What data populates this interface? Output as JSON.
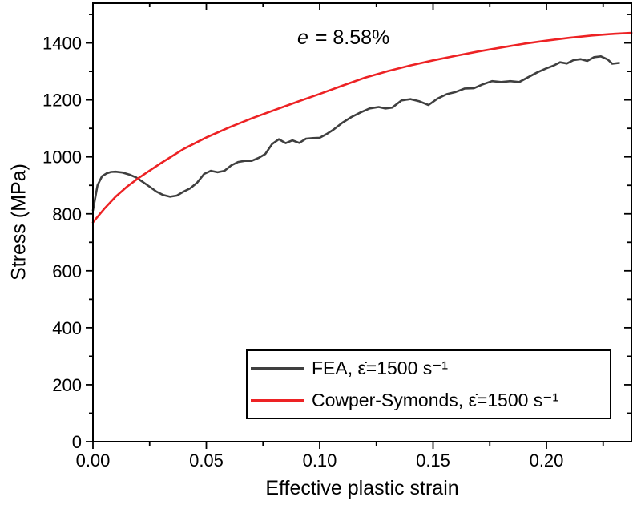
{
  "figure": {
    "background": "#ffffff",
    "annotation": {
      "symbol": "e",
      "rest": " = 8.58%"
    },
    "x_axis": {
      "title": "Effective plastic strain"
    },
    "y_axis": {
      "title": "Stress (MPa)"
    },
    "legend": {
      "items": [
        {
          "label": "FEA, ε̇=1500 s⁻¹",
          "color": "#3f3f3f"
        },
        {
          "label": "Cowper-Symonds, ε̇=1500 s⁻¹",
          "color": "#ed2224"
        }
      ]
    }
  },
  "chart_data": {
    "type": "line",
    "title": "",
    "annotation": "e = 8.58%",
    "xlabel": "Effective plastic strain",
    "ylabel": "Stress (MPa)",
    "xlim": [
      0,
      0.2375
    ],
    "ylim": [
      0,
      1540
    ],
    "grid": false,
    "legend_position": "inside lower right",
    "x_major_ticks": {
      "values": [
        0,
        0.05,
        0.1,
        0.15,
        0.2
      ],
      "labels": [
        "0.00",
        "0.05",
        "0.10",
        "0.15",
        "0.20"
      ]
    },
    "x_minor_ticks": [
      0.025,
      0.075,
      0.125,
      0.175,
      0.225
    ],
    "y_major_ticks": {
      "values": [
        0,
        200,
        400,
        600,
        800,
        1000,
        1200,
        1400
      ],
      "labels": [
        "0",
        "200",
        "400",
        "600",
        "800",
        "1000",
        "1200",
        "1400"
      ]
    },
    "y_minor_ticks": [
      100,
      300,
      500,
      700,
      900,
      1100,
      1300,
      1500
    ],
    "series": [
      {
        "name": "FEA, ε̇=1500 s⁻¹",
        "color": "#3f3f3f",
        "x": [
          0.0,
          0.002,
          0.004,
          0.006,
          0.008,
          0.01,
          0.013,
          0.016,
          0.019,
          0.022,
          0.025,
          0.028,
          0.031,
          0.034,
          0.037,
          0.04,
          0.043,
          0.046,
          0.049,
          0.052,
          0.055,
          0.058,
          0.061,
          0.064,
          0.067,
          0.07,
          0.073,
          0.076,
          0.079,
          0.082,
          0.085,
          0.088,
          0.091,
          0.094,
          0.097,
          0.1,
          0.103,
          0.106,
          0.11,
          0.114,
          0.118,
          0.122,
          0.126,
          0.129,
          0.132,
          0.136,
          0.14,
          0.144,
          0.148,
          0.152,
          0.156,
          0.16,
          0.164,
          0.168,
          0.172,
          0.176,
          0.18,
          0.184,
          0.188,
          0.192,
          0.196,
          0.2,
          0.203,
          0.206,
          0.209,
          0.212,
          0.215,
          0.218,
          0.221,
          0.224,
          0.227,
          0.229,
          0.232
        ],
        "y": [
          812,
          900,
          932,
          942,
          947,
          948,
          945,
          938,
          928,
          912,
          895,
          878,
          866,
          860,
          864,
          878,
          890,
          910,
          940,
          951,
          946,
          951,
          970,
          982,
          986,
          986,
          996,
          1010,
          1045,
          1062,
          1048,
          1058,
          1049,
          1064,
          1066,
          1067,
          1080,
          1095,
          1120,
          1140,
          1156,
          1170,
          1175,
          1170,
          1173,
          1198,
          1203,
          1195,
          1182,
          1205,
          1220,
          1228,
          1240,
          1241,
          1255,
          1266,
          1263,
          1266,
          1263,
          1280,
          1297,
          1311,
          1320,
          1332,
          1328,
          1340,
          1343,
          1337,
          1350,
          1353,
          1342,
          1327,
          1330
        ]
      },
      {
        "name": "Cowper-Symonds, ε̇=1500 s⁻¹",
        "color": "#ed2224",
        "x": [
          0.0,
          0.005,
          0.01,
          0.015,
          0.02,
          0.025,
          0.03,
          0.035,
          0.04,
          0.05,
          0.06,
          0.07,
          0.08,
          0.09,
          0.1,
          0.11,
          0.12,
          0.13,
          0.14,
          0.15,
          0.16,
          0.17,
          0.18,
          0.19,
          0.2,
          0.21,
          0.22,
          0.23,
          0.2375
        ],
        "y": [
          770,
          818,
          860,
          895,
          925,
          952,
          978,
          1003,
          1028,
          1068,
          1103,
          1135,
          1164,
          1193,
          1221,
          1250,
          1278,
          1301,
          1321,
          1339,
          1355,
          1370,
          1384,
          1397,
          1408,
          1418,
          1426,
          1432,
          1435
        ]
      }
    ]
  }
}
